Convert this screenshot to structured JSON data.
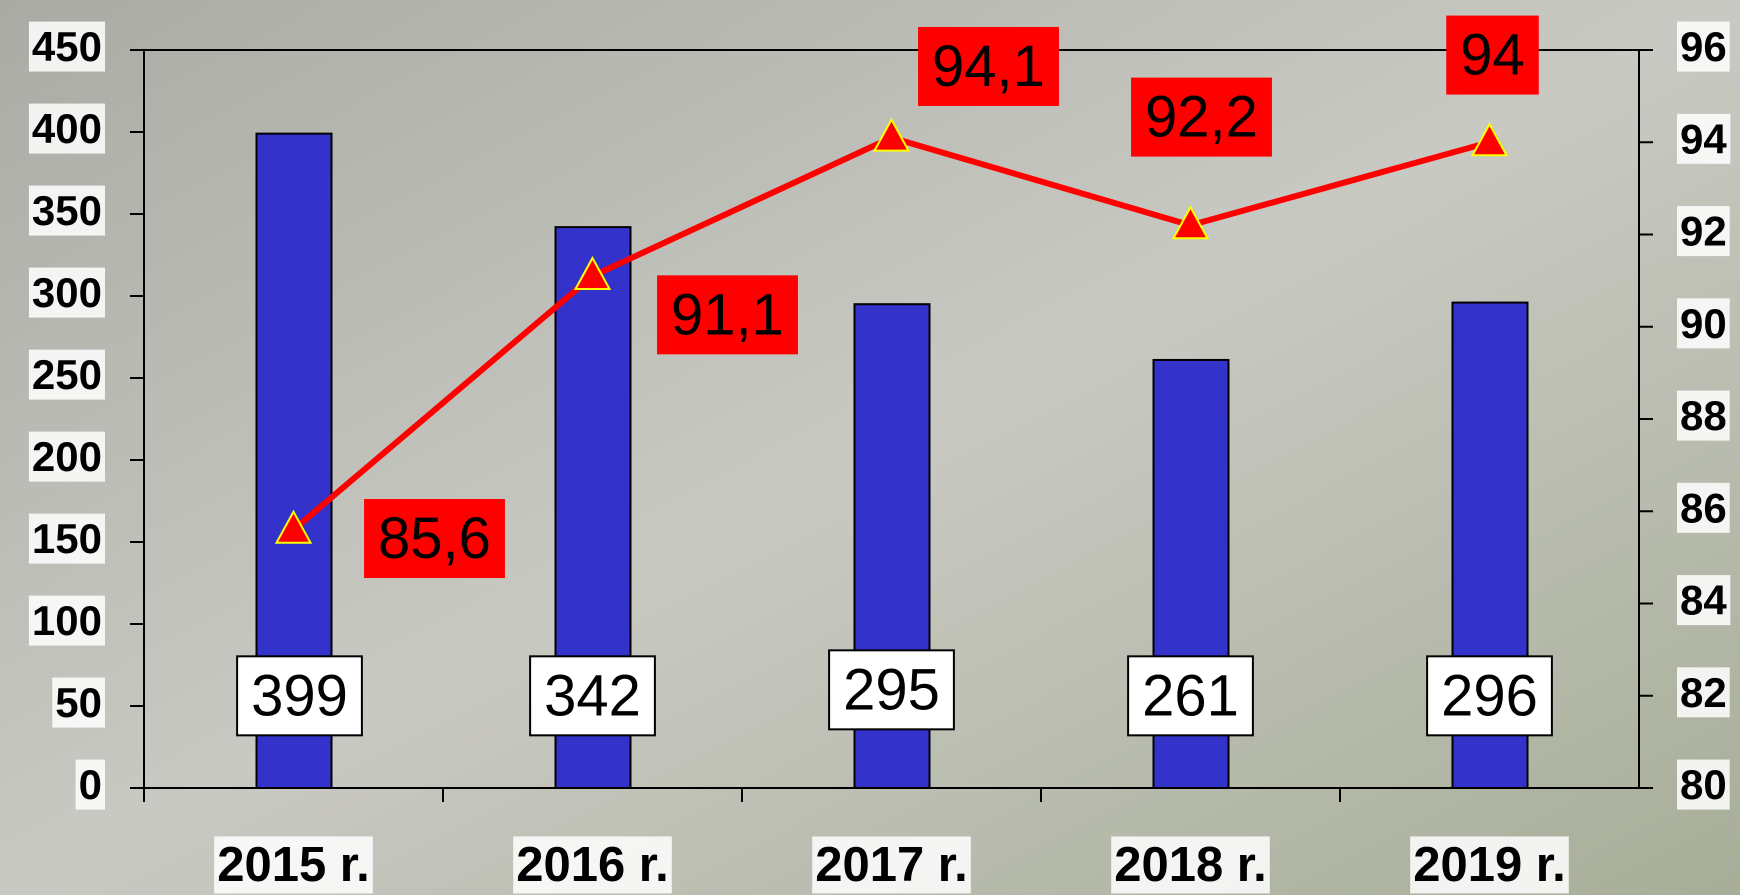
{
  "chart_data": {
    "type": "bar",
    "categories": [
      "2015 r.",
      "2016 r.",
      "2017 r.",
      "2018 r.",
      "2019 r."
    ],
    "series": [
      {
        "type": "bar",
        "color": "#3333cc",
        "values": [
          399,
          342,
          295,
          261,
          296
        ]
      },
      {
        "type": "line",
        "axis": "y2",
        "color": "#ff0000",
        "values": [
          85.6,
          91.1,
          94.1,
          92.2,
          94
        ],
        "value_labels": [
          "85,6",
          "91,1",
          "94,1",
          "92,2",
          "94"
        ]
      }
    ],
    "ylim": [
      0,
      450
    ],
    "yticks": [
      0,
      50,
      100,
      150,
      200,
      250,
      300,
      350,
      400,
      450
    ],
    "y2lim": [
      80,
      96
    ],
    "y2ticks": [
      80,
      82,
      84,
      86,
      88,
      90,
      92,
      94,
      96
    ]
  }
}
